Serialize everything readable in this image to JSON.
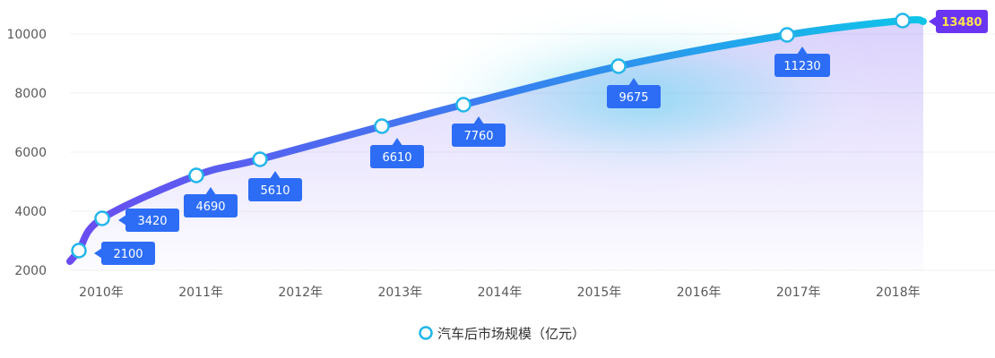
{
  "chart_data": {
    "type": "line",
    "title": "",
    "xlabel": "",
    "ylabel": "",
    "categories": [
      "2010年",
      "2011年",
      "2012年",
      "2013年",
      "2014年",
      "2015年",
      "2016年",
      "2017年",
      "2018年"
    ],
    "y_ticks": [
      "2000",
      "4000",
      "6000",
      "8000",
      "10000"
    ],
    "ylim": [
      2000,
      10500
    ],
    "series": [
      {
        "name": "汽车后市场规模（亿元）",
        "points": [
          {
            "x": "2010年",
            "value": 2100,
            "label": "2100"
          },
          {
            "x": "2010年",
            "value": 3420,
            "label": "3420"
          },
          {
            "x": "2011年",
            "value": 4690,
            "label": "4690"
          },
          {
            "x": "2012年",
            "value": 5610,
            "label": "5610"
          },
          {
            "x": "2013年",
            "value": 6610,
            "label": "6610"
          },
          {
            "x": "2014年",
            "value": 7760,
            "label": "7760"
          },
          {
            "x": "2015年",
            "value": 9675,
            "label": "9675"
          },
          {
            "x": "2017年",
            "value": 11230,
            "label": "11230"
          },
          {
            "x": "2018年",
            "value": 13480,
            "label": "13480"
          }
        ]
      }
    ],
    "legend": {
      "position": "bottom-center",
      "label": "汽车后市场规模（亿元）"
    },
    "grid": true,
    "colors": {
      "line_start": "#6a4cf0",
      "line_end": "#0ec5e8",
      "label_box": "#2d6df6",
      "label_box_last": "#6a35f2",
      "label_text_last": "#ffe34d",
      "marker_ring": "#23b6ea",
      "grid": "#f0f0f0",
      "tick_text": "#595959"
    }
  }
}
